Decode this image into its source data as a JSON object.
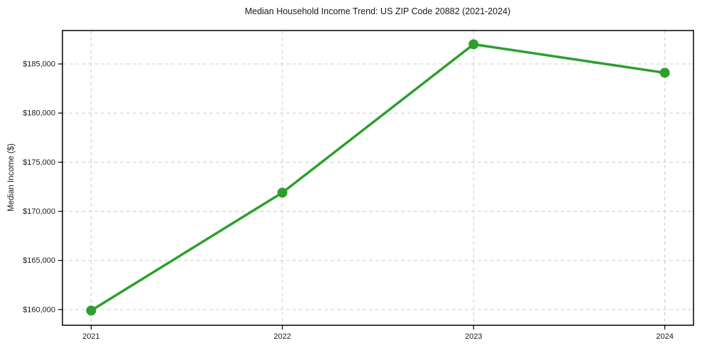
{
  "chart_data": {
    "type": "line",
    "title": "Median Household Income Trend: US ZIP Code 20882 (2021-2024)",
    "xlabel": "",
    "ylabel": "Median Income ($)",
    "categories": [
      2021,
      2022,
      2023,
      2024
    ],
    "values": [
      159900,
      171900,
      187000,
      184100
    ],
    "yticks": [
      {
        "value": 160000,
        "label": "$160,000"
      },
      {
        "value": 165000,
        "label": "$165,000"
      },
      {
        "value": 170000,
        "label": "$170,000"
      },
      {
        "value": 175000,
        "label": "$175,000"
      },
      {
        "value": 180000,
        "label": "$180,000"
      },
      {
        "value": 185000,
        "label": "$185,000"
      }
    ],
    "ylim": [
      158400,
      188400
    ],
    "xlim": [
      2020.85,
      2024.15
    ],
    "grid": "dashed",
    "legend": "none",
    "marker": "circle",
    "colors": {
      "line": "#2ca02c",
      "grid": "#cccccc",
      "axis": "#000000",
      "text": "#1a1a1a",
      "background": "#ffffff"
    }
  }
}
